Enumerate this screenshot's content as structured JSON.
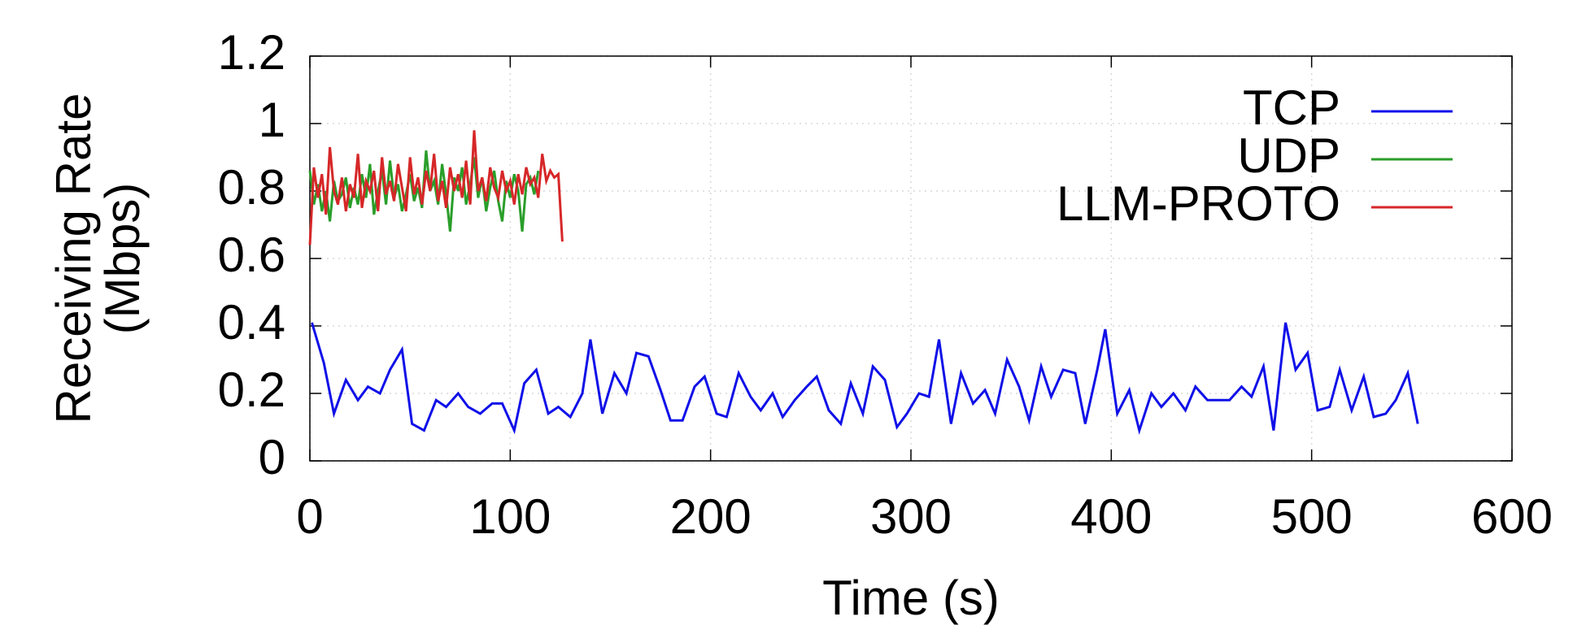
{
  "chart_data": {
    "type": "line",
    "x_label": "Time (s)",
    "y_label": [
      "Receiving Rate",
      "(Mbps)"
    ],
    "xlim": [
      0,
      600
    ],
    "xticks": [
      0,
      100,
      200,
      300,
      400,
      500,
      600
    ],
    "ylim": [
      0,
      1.2
    ],
    "yticks": [
      0,
      0.2,
      0.4,
      0.6,
      0.8,
      1,
      1.2
    ],
    "grid": true,
    "legend": "top-right",
    "series": [
      {
        "name": "TCP",
        "color": "#1010e8",
        "x": [
          1,
          7,
          12,
          18,
          24,
          29,
          35,
          40,
          46,
          51,
          57,
          63,
          68,
          74,
          79,
          85,
          91,
          96,
          102,
          107,
          113,
          119,
          124,
          130,
          136,
          140,
          146,
          152,
          158,
          163,
          169,
          175,
          180,
          186,
          192,
          197,
          203,
          208,
          214,
          220,
          225,
          231,
          236,
          242,
          248,
          253,
          259,
          265,
          270,
          276,
          281,
          287,
          293,
          298,
          304,
          309,
          314,
          320,
          325,
          331,
          337,
          342,
          348,
          354,
          359,
          365,
          370,
          376,
          382,
          387,
          393,
          397,
          403,
          409,
          414,
          420,
          425,
          431,
          437,
          442,
          448,
          454,
          459,
          465,
          470,
          476,
          481,
          487,
          492,
          498,
          503,
          509,
          514,
          520,
          526,
          531,
          537,
          542,
          548,
          553
        ],
        "values": [
          0.41,
          0.29,
          0.14,
          0.24,
          0.18,
          0.22,
          0.2,
          0.27,
          0.33,
          0.11,
          0.09,
          0.18,
          0.16,
          0.2,
          0.16,
          0.14,
          0.17,
          0.17,
          0.09,
          0.23,
          0.27,
          0.14,
          0.16,
          0.13,
          0.2,
          0.36,
          0.14,
          0.26,
          0.2,
          0.32,
          0.31,
          0.21,
          0.12,
          0.12,
          0.22,
          0.25,
          0.14,
          0.13,
          0.26,
          0.19,
          0.15,
          0.2,
          0.13,
          0.18,
          0.22,
          0.25,
          0.15,
          0.11,
          0.23,
          0.14,
          0.28,
          0.24,
          0.1,
          0.14,
          0.2,
          0.19,
          0.36,
          0.11,
          0.26,
          0.17,
          0.21,
          0.14,
          0.3,
          0.22,
          0.12,
          0.28,
          0.19,
          0.27,
          0.26,
          0.11,
          0.27,
          0.39,
          0.14,
          0.21,
          0.09,
          0.2,
          0.16,
          0.2,
          0.15,
          0.22,
          0.18,
          0.18,
          0.18,
          0.22,
          0.19,
          0.28,
          0.09,
          0.41,
          0.27,
          0.32,
          0.15,
          0.16,
          0.27,
          0.15,
          0.25,
          0.13,
          0.14,
          0.18,
          0.26,
          0.11
        ]
      },
      {
        "name": "UDP",
        "color": "#2a9e2a",
        "x": [
          0,
          2,
          4,
          6,
          8,
          10,
          12,
          14,
          16,
          18,
          20,
          22,
          24,
          26,
          28,
          30,
          32,
          34,
          36,
          38,
          40,
          42,
          44,
          46,
          48,
          50,
          52,
          54,
          56,
          58,
          60,
          62,
          64,
          66,
          68,
          70,
          72,
          74,
          76,
          78,
          80,
          82,
          84,
          86,
          88,
          90,
          92,
          94,
          96,
          98,
          100,
          102,
          104,
          106,
          108,
          110,
          112,
          114
        ],
        "values": [
          0.86,
          0.76,
          0.82,
          0.74,
          0.8,
          0.71,
          0.83,
          0.77,
          0.79,
          0.84,
          0.75,
          0.81,
          0.76,
          0.85,
          0.78,
          0.88,
          0.73,
          0.8,
          0.86,
          0.76,
          0.89,
          0.78,
          0.82,
          0.74,
          0.79,
          0.85,
          0.77,
          0.81,
          0.75,
          0.92,
          0.8,
          0.83,
          0.76,
          0.88,
          0.79,
          0.68,
          0.84,
          0.8,
          0.87,
          0.76,
          0.82,
          0.9,
          0.78,
          0.84,
          0.74,
          0.81,
          0.86,
          0.77,
          0.71,
          0.83,
          0.78,
          0.85,
          0.8,
          0.68,
          0.82,
          0.84,
          0.79,
          0.86
        ]
      },
      {
        "name": "LLM-PROTO",
        "color": "#d62728",
        "x": [
          0,
          2,
          4,
          6,
          8,
          10,
          12,
          14,
          16,
          18,
          20,
          22,
          24,
          26,
          28,
          30,
          32,
          34,
          36,
          38,
          40,
          42,
          44,
          46,
          48,
          50,
          52,
          54,
          56,
          58,
          60,
          62,
          64,
          66,
          68,
          70,
          72,
          74,
          76,
          78,
          80,
          82,
          84,
          86,
          88,
          90,
          92,
          94,
          96,
          98,
          100,
          102,
          104,
          106,
          108,
          110,
          112,
          114,
          116,
          118,
          120,
          122,
          124,
          126
        ],
        "values": [
          0.64,
          0.87,
          0.78,
          0.85,
          0.73,
          0.93,
          0.8,
          0.76,
          0.84,
          0.74,
          0.82,
          0.78,
          0.91,
          0.75,
          0.83,
          0.8,
          0.86,
          0.74,
          0.9,
          0.79,
          0.83,
          0.77,
          0.88,
          0.81,
          0.74,
          0.9,
          0.79,
          0.84,
          0.76,
          0.86,
          0.8,
          0.91,
          0.77,
          0.83,
          0.75,
          0.87,
          0.8,
          0.85,
          0.78,
          0.89,
          0.76,
          0.98,
          0.8,
          0.84,
          0.77,
          0.87,
          0.81,
          0.78,
          0.86,
          0.8,
          0.83,
          0.76,
          0.85,
          0.79,
          0.87,
          0.82,
          0.84,
          0.78,
          0.91,
          0.83,
          0.86,
          0.84,
          0.85,
          0.65
        ]
      }
    ]
  }
}
